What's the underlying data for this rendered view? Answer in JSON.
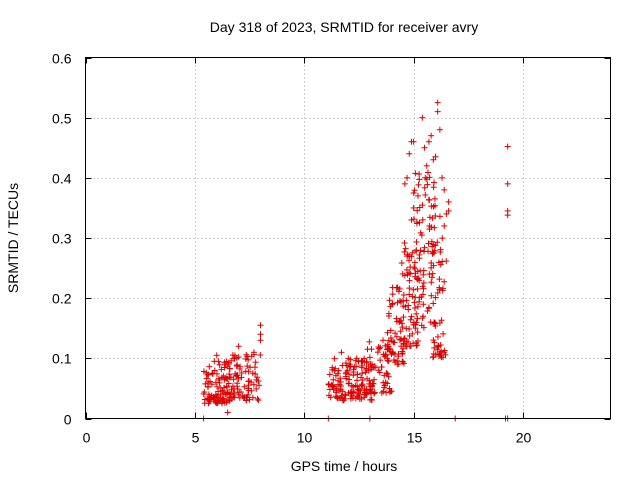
{
  "chart_data": {
    "type": "scatter",
    "title": "Day 318 of 2023, SRMTID for receiver avry",
    "xlabel": "GPS time / hours",
    "ylabel": "SRMTID / TECUs",
    "xlim": [
      0,
      24
    ],
    "ylim": [
      0,
      0.6
    ],
    "x_ticks": [
      0,
      5,
      10,
      15,
      20
    ],
    "x_tick_labels": [
      "0",
      "5",
      "10",
      "15",
      "20"
    ],
    "y_ticks": [
      0,
      0.1,
      0.2,
      0.3,
      0.4,
      0.5,
      0.6
    ],
    "y_tick_labels": [
      "0",
      "0.1",
      "0.2",
      "0.3",
      "0.4",
      "0.5",
      "0.6"
    ],
    "grid": true,
    "marker": "+",
    "color": "#dd0000",
    "series": [
      {
        "name": "SRMTID",
        "clusters": [
          {
            "x_range": [
              5.4,
              6.6
            ],
            "y_range": [
              0.025,
              0.095
            ],
            "count": 90
          },
          {
            "x_range": [
              6.5,
              8.0
            ],
            "y_range": [
              0.03,
              0.11
            ],
            "count": 85
          },
          {
            "x_range": [
              11.1,
              13.1
            ],
            "y_range": [
              0.03,
              0.1
            ],
            "count": 130
          },
          {
            "x_range": [
              12.8,
              14.0
            ],
            "y_range": [
              0.04,
              0.13
            ],
            "count": 60
          },
          {
            "x_range": [
              13.8,
              14.6
            ],
            "y_range": [
              0.09,
              0.22
            ],
            "count": 55
          },
          {
            "x_range": [
              14.4,
              15.3
            ],
            "y_range": [
              0.12,
              0.3
            ],
            "count": 70
          },
          {
            "x_range": [
              15.0,
              16.0
            ],
            "y_range": [
              0.15,
              0.42
            ],
            "count": 80
          },
          {
            "x_range": [
              15.8,
              16.5
            ],
            "y_range": [
              0.1,
              0.36
            ],
            "count": 60
          }
        ],
        "points": [
          [
            8.0,
            0.155
          ],
          [
            8.0,
            0.14
          ],
          [
            8.0,
            0.13
          ],
          [
            6.0,
            0.105
          ],
          [
            11.7,
            0.11
          ],
          [
            12.4,
            0.1
          ],
          [
            13.1,
            0.09
          ],
          [
            13.6,
            0.13
          ],
          [
            13.8,
            0.1
          ],
          [
            6.5,
            0.01
          ],
          [
            7.0,
            0.12
          ],
          [
            7.7,
            0.11
          ],
          [
            14.8,
            0.44
          ],
          [
            14.9,
            0.46
          ],
          [
            15.0,
            0.46
          ],
          [
            14.6,
            0.39
          ],
          [
            14.7,
            0.4
          ],
          [
            15.4,
            0.5
          ],
          [
            15.6,
            0.42
          ],
          [
            15.8,
            0.47
          ],
          [
            16.1,
            0.525
          ],
          [
            16.1,
            0.51
          ],
          [
            16.0,
            0.435
          ],
          [
            15.9,
            0.43
          ],
          [
            16.2,
            0.48
          ],
          [
            15.5,
            0.45
          ],
          [
            15.7,
            0.46
          ],
          [
            16.3,
            0.4
          ],
          [
            16.4,
            0.38
          ],
          [
            15.2,
            0.37
          ],
          [
            15.0,
            0.35
          ],
          [
            14.9,
            0.33
          ],
          [
            16.5,
            0.34
          ],
          [
            16.6,
            0.345
          ],
          [
            16.6,
            0.36
          ],
          [
            16.4,
            0.32
          ],
          [
            19.3,
            0.452
          ],
          [
            19.3,
            0.39
          ],
          [
            19.3,
            0.345
          ],
          [
            19.3,
            0.338
          ],
          [
            5.4,
            0.0
          ],
          [
            11.1,
            0.0
          ],
          [
            13.0,
            0.0
          ],
          [
            16.9,
            0.0
          ],
          [
            19.2,
            0.0
          ],
          [
            19.3,
            0.0
          ]
        ]
      }
    ]
  }
}
